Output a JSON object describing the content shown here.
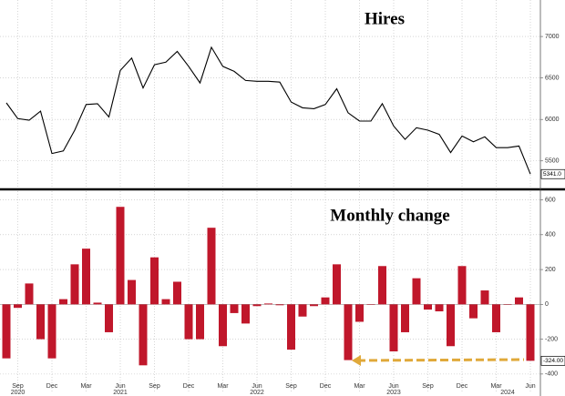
{
  "chart_data": [
    {
      "type": "line",
      "title": "Hires",
      "color": "#000000",
      "values": [
        6200,
        6010,
        5990,
        6100,
        5590,
        5620,
        5870,
        6180,
        6190,
        6030,
        6590,
        6740,
        6380,
        6660,
        6690,
        6820,
        6640,
        6440,
        6870,
        6640,
        6580,
        6470,
        6460,
        6460,
        6450,
        6210,
        6140,
        6130,
        6180,
        6370,
        6080,
        5980,
        5980,
        6190,
        5920,
        5760,
        5900,
        5870,
        5820,
        5600,
        5800,
        5730,
        5790,
        5660,
        5660,
        5680,
        5341
      ],
      "value_labels": [
        null,
        null,
        null,
        null,
        null,
        null,
        null,
        null,
        null,
        null,
        null,
        null,
        null,
        null,
        null,
        null,
        null,
        null,
        null,
        null,
        null,
        null,
        null,
        null,
        null,
        null,
        null,
        null,
        null,
        null,
        null,
        null,
        null,
        null,
        null,
        null,
        null,
        null,
        null,
        null,
        null,
        null,
        null,
        null,
        null,
        null,
        "5341.0"
      ],
      "ylim": [
        5190,
        7440
      ],
      "yticks": [
        5500,
        6000,
        6500,
        7000
      ],
      "grid": true
    },
    {
      "type": "bar",
      "title": "Monthly change",
      "color": "#c0172b",
      "categories": [
        "",
        "Sep",
        null,
        null,
        "Dec",
        null,
        null,
        "Mar",
        null,
        null,
        "Jun",
        null,
        null,
        "Sep",
        null,
        null,
        "Dec",
        null,
        null,
        "Mar",
        null,
        null,
        "Jun",
        null,
        null,
        "Sep",
        null,
        null,
        "Dec",
        null,
        null,
        "Mar",
        null,
        null,
        "Jun",
        null,
        null,
        "Sep",
        null,
        null,
        "Dec",
        null,
        null,
        "Mar",
        null,
        null,
        "Jun"
      ],
      "years": [
        null,
        "2020",
        null,
        null,
        null,
        null,
        null,
        null,
        null,
        null,
        "2021",
        null,
        null,
        null,
        null,
        null,
        null,
        null,
        null,
        null,
        null,
        null,
        "2022",
        null,
        null,
        null,
        null,
        null,
        null,
        null,
        null,
        null,
        null,
        null,
        "2023",
        null,
        null,
        null,
        null,
        null,
        null,
        null,
        null,
        null,
        "2024",
        null,
        null
      ],
      "values": [
        -310,
        -20,
        120,
        -200,
        -310,
        30,
        230,
        320,
        10,
        -160,
        560,
        140,
        -350,
        270,
        30,
        130,
        -200,
        -200,
        440,
        -240,
        -50,
        -110,
        -10,
        5,
        -5,
        -260,
        -70,
        -10,
        40,
        230,
        -320,
        -100,
        0,
        220,
        -270,
        -160,
        150,
        -30,
        -40,
        -240,
        220,
        -80,
        80,
        -160,
        0,
        40,
        -324
      ],
      "value_labels": [
        null,
        null,
        null,
        null,
        null,
        null,
        null,
        null,
        null,
        null,
        null,
        null,
        null,
        null,
        null,
        null,
        null,
        null,
        null,
        null,
        null,
        null,
        null,
        null,
        null,
        null,
        null,
        null,
        null,
        null,
        null,
        null,
        null,
        null,
        null,
        null,
        null,
        null,
        null,
        null,
        null,
        null,
        null,
        null,
        null,
        null,
        "-324.00"
      ],
      "ylim": [
        -500,
        650
      ],
      "yticks": [
        -400,
        -200,
        0,
        200,
        400,
        600
      ],
      "grid": true
    }
  ]
}
